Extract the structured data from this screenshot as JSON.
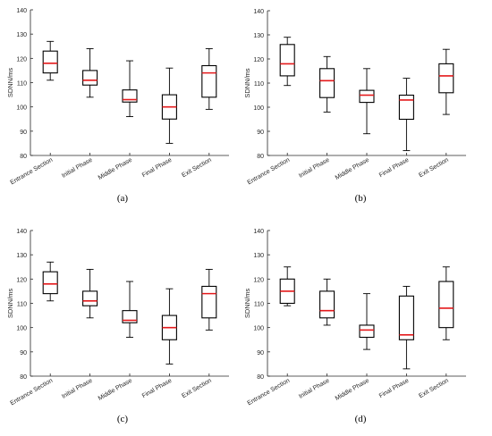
{
  "chart_data": [
    {
      "type": "box",
      "panel_label": "(a)",
      "ylabel": "SDNN/ms",
      "ylim": [
        80,
        140
      ],
      "yticks": [
        80,
        90,
        100,
        110,
        120,
        130,
        140
      ],
      "categories": [
        "Entrance Section",
        "Initial Phase",
        "Middle Phase",
        "Final Phase",
        "Exit Section"
      ],
      "boxes": [
        {
          "min": 111,
          "q1": 114,
          "median": 118,
          "q3": 123,
          "max": 127
        },
        {
          "min": 104,
          "q1": 109,
          "median": 111,
          "q3": 115,
          "max": 124
        },
        {
          "min": 96,
          "q1": 102,
          "median": 103,
          "q3": 107,
          "max": 119
        },
        {
          "min": 85,
          "q1": 95,
          "median": 100,
          "q3": 105,
          "max": 116
        },
        {
          "min": 99,
          "q1": 104,
          "median": 114,
          "q3": 117,
          "max": 124
        }
      ]
    },
    {
      "type": "box",
      "panel_label": "(b)",
      "ylabel": "SDNN/ms",
      "ylim": [
        80,
        140
      ],
      "yticks": [
        80,
        90,
        100,
        110,
        120,
        130,
        140
      ],
      "categories": [
        "Entrance Section",
        "Initial Phase",
        "Middle Phase",
        "Final Phase",
        "Exit Section"
      ],
      "boxes": [
        {
          "min": 109,
          "q1": 113,
          "median": 118,
          "q3": 126,
          "max": 129
        },
        {
          "min": 98,
          "q1": 104,
          "median": 111,
          "q3": 116,
          "max": 121
        },
        {
          "min": 89,
          "q1": 102,
          "median": 105,
          "q3": 107,
          "max": 116
        },
        {
          "min": 82,
          "q1": 95,
          "median": 103,
          "q3": 105,
          "max": 112
        },
        {
          "min": 97,
          "q1": 106,
          "median": 113,
          "q3": 118,
          "max": 124
        }
      ]
    },
    {
      "type": "box",
      "panel_label": "(c)",
      "ylabel": "SDNN/ms",
      "ylim": [
        80,
        140
      ],
      "yticks": [
        80,
        90,
        100,
        110,
        120,
        130,
        140
      ],
      "categories": [
        "Entrance Section",
        "Initial Phase",
        "Middle Phase",
        "Final Phase",
        "Exit Section"
      ],
      "boxes": [
        {
          "min": 111,
          "q1": 114,
          "median": 118,
          "q3": 123,
          "max": 127
        },
        {
          "min": 104,
          "q1": 109,
          "median": 111,
          "q3": 115,
          "max": 124
        },
        {
          "min": 96,
          "q1": 102,
          "median": 103,
          "q3": 107,
          "max": 119
        },
        {
          "min": 85,
          "q1": 95,
          "median": 100,
          "q3": 105,
          "max": 116
        },
        {
          "min": 99,
          "q1": 104,
          "median": 114,
          "q3": 117,
          "max": 124
        }
      ]
    },
    {
      "type": "box",
      "panel_label": "(d)",
      "ylabel": "SDNN/ms",
      "ylim": [
        80,
        140
      ],
      "yticks": [
        80,
        90,
        100,
        110,
        120,
        130,
        140
      ],
      "categories": [
        "Entrance Section",
        "Initial Phase",
        "Middle Phase",
        "Final Phase",
        "Exit Section"
      ],
      "boxes": [
        {
          "min": 109,
          "q1": 110,
          "median": 115,
          "q3": 120,
          "max": 125
        },
        {
          "min": 101,
          "q1": 104,
          "median": 107,
          "q3": 115,
          "max": 120
        },
        {
          "min": 91,
          "q1": 96,
          "median": 99,
          "q3": 101,
          "max": 114
        },
        {
          "min": 83,
          "q1": 95,
          "median": 97,
          "q3": 113,
          "max": 117
        },
        {
          "min": 95,
          "q1": 100,
          "median": 108,
          "q3": 119,
          "max": 125
        }
      ]
    }
  ],
  "colors": {
    "median": "#e41a1c",
    "box_stroke": "#000000",
    "axis": "#262626"
  }
}
